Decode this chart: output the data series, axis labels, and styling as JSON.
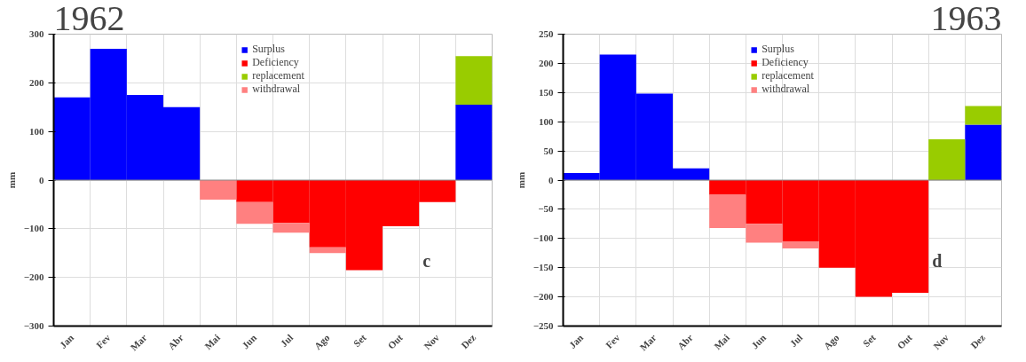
{
  "chart_data": [
    {
      "type": "bar",
      "title": "1962",
      "ylabel": "mm",
      "stacked": true,
      "grid": true,
      "legend": "top",
      "categories": [
        "Jan",
        "Fev",
        "Mar",
        "Abr",
        "Mai",
        "Jun",
        "Jul",
        "Ago",
        "Set",
        "Out",
        "Nov",
        "Dez"
      ],
      "series": [
        {
          "name": "Surplus",
          "color": "#0000ff",
          "values": [
            170,
            270,
            175,
            150,
            null,
            null,
            null,
            null,
            null,
            null,
            null,
            155
          ]
        },
        {
          "name": "Deficiency",
          "color": "#ff0000",
          "values": [
            null,
            null,
            null,
            null,
            null,
            -45,
            -88,
            -138,
            -185,
            -95,
            -45,
            null
          ]
        },
        {
          "name": "replacement",
          "color": "#99cc00",
          "values": [
            null,
            null,
            null,
            null,
            null,
            null,
            null,
            null,
            null,
            null,
            null,
            100
          ]
        },
        {
          "name": "withdrawal",
          "color": "#ff8080",
          "values": [
            null,
            null,
            null,
            null,
            -40,
            -45,
            -20,
            -12,
            null,
            null,
            null,
            null
          ]
        }
      ],
      "ylim": [
        -300,
        300
      ],
      "yticks": [
        -300,
        -200,
        -100,
        0,
        100,
        200,
        300
      ],
      "annotations": [
        "c"
      ]
    },
    {
      "type": "bar",
      "title": "1963",
      "ylabel": "mm",
      "stacked": true,
      "grid": true,
      "legend": "top",
      "categories": [
        "Jan",
        "Fev",
        "Mar",
        "Abr",
        "Mai",
        "Jun",
        "Jul",
        "Ago",
        "Set",
        "Out",
        "Nov",
        "Dez"
      ],
      "series": [
        {
          "name": "Surplus",
          "color": "#0000ff",
          "values": [
            12,
            215,
            148,
            20,
            null,
            null,
            null,
            null,
            null,
            null,
            null,
            95
          ]
        },
        {
          "name": "Deficiency",
          "color": "#ff0000",
          "values": [
            null,
            null,
            null,
            null,
            -25,
            -75,
            -105,
            -150,
            -200,
            -193,
            null,
            null
          ]
        },
        {
          "name": "replacement",
          "color": "#99cc00",
          "values": [
            null,
            null,
            null,
            null,
            null,
            null,
            null,
            null,
            null,
            null,
            70,
            32
          ]
        },
        {
          "name": "withdrawal",
          "color": "#ff8080",
          "values": [
            null,
            null,
            null,
            null,
            -57,
            -32,
            -12,
            null,
            null,
            null,
            null,
            null
          ]
        }
      ],
      "ylim": [
        -250,
        250
      ],
      "yticks": [
        -250,
        -200,
        -150,
        -100,
        -50,
        0,
        50,
        100,
        150,
        200,
        250
      ],
      "annotations": [
        "d"
      ]
    }
  ]
}
